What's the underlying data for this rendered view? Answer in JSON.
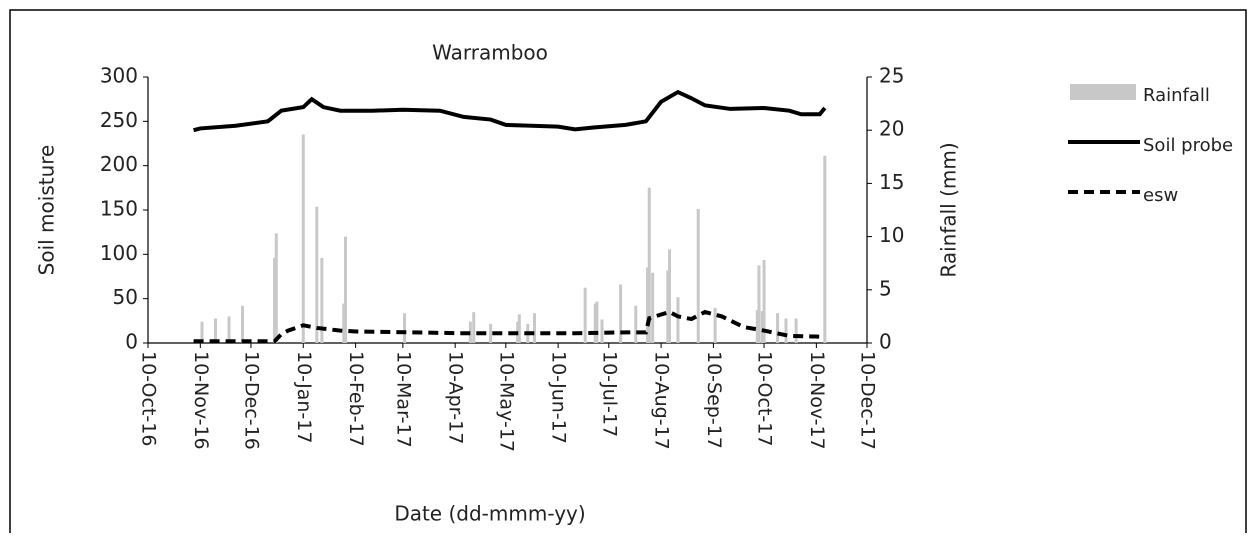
{
  "chart_data": {
    "type": "combo",
    "title": "Warramboo",
    "x_label": "Date (dd-mmm-yy)",
    "y_label": "Soil moisture",
    "y2_label": "Rainfall (mm)",
    "xlim": [
      "2016-10-10",
      "2017-12-10"
    ],
    "xticks": [
      {
        "value": "2016-10-10",
        "label": "10-Oct-16"
      },
      {
        "value": "2016-11-10",
        "label": "10-Nov-16"
      },
      {
        "value": "2016-12-10",
        "label": "10-Dec-16"
      },
      {
        "value": "2017-01-10",
        "label": "10-Jan-17"
      },
      {
        "value": "2017-02-10",
        "label": "10-Feb-17"
      },
      {
        "value": "2017-03-10",
        "label": "10-Mar-17"
      },
      {
        "value": "2017-04-10",
        "label": "10-Apr-17"
      },
      {
        "value": "2017-05-10",
        "label": "10-May-17"
      },
      {
        "value": "2017-06-10",
        "label": "10-Jun-17"
      },
      {
        "value": "2017-07-10",
        "label": "10-Jul-17"
      },
      {
        "value": "2017-08-10",
        "label": "10-Aug-17"
      },
      {
        "value": "2017-09-10",
        "label": "10-Sep-17"
      },
      {
        "value": "2017-10-10",
        "label": "10-Oct-17"
      },
      {
        "value": "2017-11-10",
        "label": "10-Nov-17"
      },
      {
        "value": "2017-12-10",
        "label": "10-Dec-17"
      }
    ],
    "ylim": [
      0,
      300
    ],
    "yticks": [
      0,
      50,
      100,
      150,
      200,
      250,
      300
    ],
    "y2lim": [
      0,
      25
    ],
    "y2ticks": [
      0,
      5,
      10,
      15,
      20,
      25
    ],
    "series": [
      {
        "name": "Rainfall",
        "type": "bar",
        "axis": "y2",
        "color": "#c8c8c8",
        "x": [
          "2016-11-11",
          "2016-11-19",
          "2016-11-27",
          "2016-12-05",
          "2016-12-24",
          "2016-12-25",
          "2017-01-10",
          "2017-01-18",
          "2017-01-21",
          "2017-02-03",
          "2017-02-04",
          "2017-03-11",
          "2017-04-19",
          "2017-04-21",
          "2017-05-01",
          "2017-05-17",
          "2017-05-18",
          "2017-05-23",
          "2017-05-27",
          "2017-06-26",
          "2017-07-02",
          "2017-07-03",
          "2017-07-06",
          "2017-07-17",
          "2017-07-26",
          "2017-08-02",
          "2017-08-03",
          "2017-08-05",
          "2017-08-14",
          "2017-08-15",
          "2017-08-20",
          "2017-09-01",
          "2017-09-11",
          "2017-10-06",
          "2017-10-07",
          "2017-10-09",
          "2017-10-10",
          "2017-10-18",
          "2017-10-23",
          "2017-10-29",
          "2017-11-15"
        ],
        "values": [
          2,
          2.3,
          2.5,
          3.5,
          8,
          10.3,
          19.6,
          12.8,
          8,
          3.7,
          10,
          2.8,
          2,
          2.9,
          1.8,
          2,
          2.7,
          1.8,
          2.8,
          5.2,
          3.7,
          3.9,
          2.2,
          5.5,
          3.5,
          7.1,
          14.6,
          6.6,
          6.8,
          8.8,
          4.3,
          12.6,
          3.3,
          3.1,
          7.3,
          3,
          7.8,
          2.8,
          2.3,
          2.3,
          17.6
        ]
      },
      {
        "name": "Soil probe",
        "type": "line",
        "axis": "y",
        "color": "#000000",
        "linestyle": "solid",
        "x": [
          "2016-11-06",
          "2016-11-10",
          "2016-12-01",
          "2016-12-20",
          "2016-12-28",
          "2017-01-10",
          "2017-01-15",
          "2017-01-22",
          "2017-02-01",
          "2017-02-20",
          "2017-03-10",
          "2017-04-01",
          "2017-04-15",
          "2017-05-01",
          "2017-05-10",
          "2017-06-10",
          "2017-06-20",
          "2017-07-01",
          "2017-07-20",
          "2017-08-01",
          "2017-08-10",
          "2017-08-20",
          "2017-08-28",
          "2017-09-05",
          "2017-09-20",
          "2017-10-10",
          "2017-10-25",
          "2017-11-01",
          "2017-11-12",
          "2017-11-15"
        ],
        "values": [
          240,
          242,
          245,
          250,
          262,
          266,
          275,
          266,
          262,
          262,
          263,
          262,
          255,
          252,
          246,
          244,
          241,
          243,
          246,
          250,
          272,
          283,
          276,
          268,
          264,
          265,
          262,
          258,
          258,
          265
        ]
      },
      {
        "name": "esw",
        "type": "line",
        "axis": "y",
        "color": "#000000",
        "linestyle": "dashed",
        "x": [
          "2016-11-06",
          "2016-12-10",
          "2016-12-24",
          "2016-12-28",
          "2017-01-01",
          "2017-01-10",
          "2017-01-18",
          "2017-02-01",
          "2017-02-10",
          "2017-03-15",
          "2017-04-15",
          "2017-06-20",
          "2017-07-20",
          "2017-08-01",
          "2017-08-03",
          "2017-08-15",
          "2017-08-20",
          "2017-08-28",
          "2017-09-05",
          "2017-09-15",
          "2017-09-28",
          "2017-10-10",
          "2017-10-15",
          "2017-10-25",
          "2017-11-15"
        ],
        "values": [
          2,
          2,
          2,
          10,
          14,
          20,
          17,
          14,
          13,
          12,
          11,
          11,
          12,
          12,
          28,
          35,
          30,
          27,
          35,
          30,
          18,
          14,
          12,
          8,
          7
        ]
      }
    ]
  }
}
